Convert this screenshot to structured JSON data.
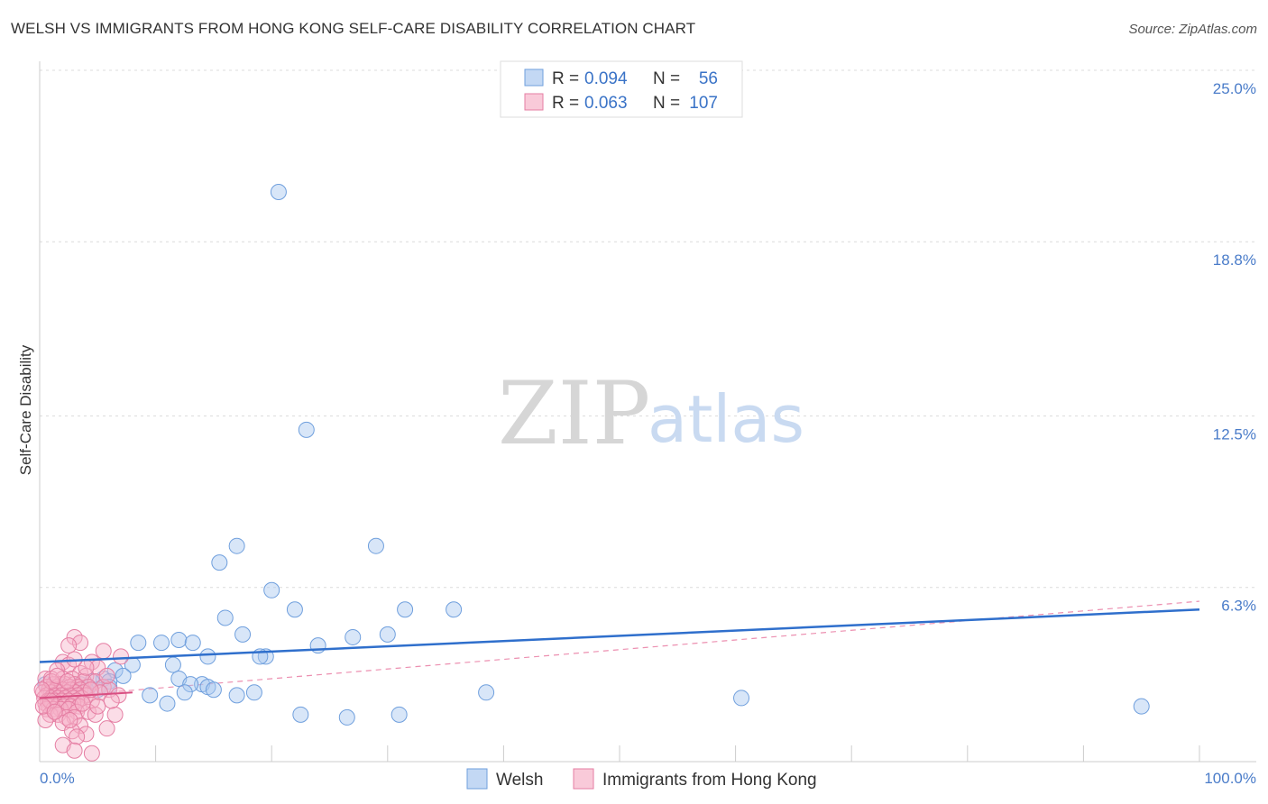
{
  "header": {
    "title": "WELSH VS IMMIGRANTS FROM HONG KONG SELF-CARE DISABILITY CORRELATION CHART",
    "source": "Source: ZipAtlas.com"
  },
  "watermark": {
    "zip": "ZIP",
    "atlas": "atlas"
  },
  "chart_data": {
    "type": "scatter",
    "ylabel": "Self-Care Disability",
    "xlim": [
      0,
      100
    ],
    "ylim": [
      0,
      25.0
    ],
    "y_ticks": [
      {
        "value": 6.3,
        "label": "6.3%"
      },
      {
        "value": 12.5,
        "label": "12.5%"
      },
      {
        "value": 18.8,
        "label": "18.8%"
      },
      {
        "value": 25.0,
        "label": "25.0%"
      }
    ],
    "x_tick_labels": {
      "min": "0.0%",
      "max": "100.0%"
    },
    "grid": "dashed horizontal",
    "legend_position": "top-center",
    "legend": {
      "rows": [
        {
          "r_label": "R = ",
          "r_value": "0.094",
          "n_label": "N = ",
          "n_value": "56",
          "color": "#a9c8ef"
        },
        {
          "r_label": "R = ",
          "r_value": "0.063",
          "n_label": "N = ",
          "n_value": "107",
          "color": "#f6b3c9"
        }
      ]
    },
    "series": [
      {
        "name": "Welsh",
        "color": "#a9c8ef",
        "stroke": "#6f9fdd",
        "trend": {
          "x0": 0,
          "y0": 3.6,
          "x1": 100,
          "y1": 5.5,
          "color": "#2f6fcc",
          "style": "solid"
        },
        "points": [
          [
            20.6,
            20.6
          ],
          [
            23.0,
            12.0
          ],
          [
            17.0,
            7.8
          ],
          [
            29.0,
            7.8
          ],
          [
            15.5,
            7.2
          ],
          [
            20.0,
            6.2
          ],
          [
            22.0,
            5.5
          ],
          [
            31.5,
            5.5
          ],
          [
            35.7,
            5.5
          ],
          [
            16.0,
            5.2
          ],
          [
            17.5,
            4.6
          ],
          [
            30.0,
            4.6
          ],
          [
            27.0,
            4.5
          ],
          [
            12.0,
            4.4
          ],
          [
            13.2,
            4.3
          ],
          [
            8.5,
            4.3
          ],
          [
            10.5,
            4.3
          ],
          [
            24.0,
            4.2
          ],
          [
            14.5,
            3.8
          ],
          [
            19.5,
            3.8
          ],
          [
            19.0,
            3.8
          ],
          [
            8.0,
            3.5
          ],
          [
            11.5,
            3.5
          ],
          [
            6.5,
            3.3
          ],
          [
            7.2,
            3.1
          ],
          [
            5.5,
            3.0
          ],
          [
            12.0,
            3.0
          ],
          [
            4.5,
            2.9
          ],
          [
            6.0,
            2.9
          ],
          [
            3.5,
            2.8
          ],
          [
            4.2,
            2.7
          ],
          [
            6.0,
            2.7
          ],
          [
            14.0,
            2.8
          ],
          [
            13.0,
            2.8
          ],
          [
            14.5,
            2.7
          ],
          [
            15.0,
            2.6
          ],
          [
            5.0,
            2.6
          ],
          [
            3.0,
            2.6
          ],
          [
            2.0,
            2.7
          ],
          [
            4.0,
            2.6
          ],
          [
            1.5,
            2.5
          ],
          [
            2.5,
            2.5
          ],
          [
            3.2,
            2.5
          ],
          [
            12.5,
            2.5
          ],
          [
            18.5,
            2.5
          ],
          [
            17.0,
            2.4
          ],
          [
            9.5,
            2.4
          ],
          [
            38.5,
            2.5
          ],
          [
            60.5,
            2.3
          ],
          [
            11.0,
            2.1
          ],
          [
            95.0,
            2.0
          ],
          [
            22.5,
            1.7
          ],
          [
            26.5,
            1.6
          ],
          [
            31.0,
            1.7
          ],
          [
            0.5,
            2.8
          ],
          [
            1.0,
            2.4
          ]
        ]
      },
      {
        "name": "Immigrants from Hong Kong",
        "color": "#f6b3c9",
        "stroke": "#e57ea3",
        "trend": {
          "x0": 0,
          "y0": 2.3,
          "x1": 8,
          "y1": 2.5,
          "color": "#d94f82",
          "style": "solid"
        },
        "trend_ext": {
          "x0": 0,
          "y0": 2.3,
          "x1": 100,
          "y1": 5.8,
          "color": "#ec8fb0",
          "style": "dashed"
        },
        "points": [
          [
            3.0,
            4.5
          ],
          [
            3.5,
            4.3
          ],
          [
            2.5,
            4.2
          ],
          [
            5.5,
            4.0
          ],
          [
            7.0,
            3.8
          ],
          [
            2.0,
            3.6
          ],
          [
            4.5,
            3.6
          ],
          [
            2.5,
            3.5
          ],
          [
            5.0,
            3.4
          ],
          [
            1.5,
            3.3
          ],
          [
            3.5,
            3.2
          ],
          [
            4.0,
            3.1
          ],
          [
            0.5,
            3.0
          ],
          [
            1.0,
            3.0
          ],
          [
            2.0,
            3.0
          ],
          [
            2.8,
            3.0
          ],
          [
            3.8,
            2.9
          ],
          [
            4.8,
            2.9
          ],
          [
            1.2,
            2.8
          ],
          [
            1.8,
            2.8
          ],
          [
            2.2,
            2.8
          ],
          [
            3.0,
            2.8
          ],
          [
            0.6,
            2.7
          ],
          [
            1.5,
            2.7
          ],
          [
            2.6,
            2.7
          ],
          [
            3.3,
            2.7
          ],
          [
            4.2,
            2.7
          ],
          [
            5.5,
            2.7
          ],
          [
            0.8,
            2.6
          ],
          [
            1.4,
            2.6
          ],
          [
            2.0,
            2.6
          ],
          [
            2.7,
            2.6
          ],
          [
            3.5,
            2.6
          ],
          [
            0.3,
            2.5
          ],
          [
            1.0,
            2.5
          ],
          [
            1.7,
            2.5
          ],
          [
            2.4,
            2.5
          ],
          [
            3.1,
            2.5
          ],
          [
            3.8,
            2.5
          ],
          [
            0.6,
            2.4
          ],
          [
            1.2,
            2.4
          ],
          [
            1.9,
            2.4
          ],
          [
            2.6,
            2.4
          ],
          [
            3.3,
            2.4
          ],
          [
            4.0,
            2.4
          ],
          [
            0.4,
            2.3
          ],
          [
            1.0,
            2.3
          ],
          [
            1.6,
            2.3
          ],
          [
            2.2,
            2.3
          ],
          [
            2.9,
            2.3
          ],
          [
            3.6,
            2.3
          ],
          [
            0.7,
            2.2
          ],
          [
            1.3,
            2.2
          ],
          [
            1.9,
            2.2
          ],
          [
            2.5,
            2.2
          ],
          [
            3.2,
            2.2
          ],
          [
            0.5,
            2.1
          ],
          [
            1.1,
            2.1
          ],
          [
            1.7,
            2.1
          ],
          [
            2.3,
            2.1
          ],
          [
            2.9,
            2.1
          ],
          [
            0.8,
            2.0
          ],
          [
            1.5,
            2.0
          ],
          [
            2.1,
            2.0
          ],
          [
            2.7,
            2.0
          ],
          [
            3.4,
            2.0
          ],
          [
            4.5,
            2.2
          ],
          [
            0.6,
            1.9
          ],
          [
            1.2,
            1.9
          ],
          [
            1.8,
            1.9
          ],
          [
            2.5,
            1.9
          ],
          [
            3.2,
            1.8
          ],
          [
            4.2,
            1.8
          ],
          [
            0.9,
            1.7
          ],
          [
            1.6,
            1.7
          ],
          [
            2.3,
            1.6
          ],
          [
            3.0,
            1.6
          ],
          [
            4.8,
            1.7
          ],
          [
            6.5,
            1.7
          ],
          [
            0.5,
            1.5
          ],
          [
            2.0,
            1.4
          ],
          [
            3.5,
            1.3
          ],
          [
            5.8,
            1.2
          ],
          [
            2.8,
            1.1
          ],
          [
            4.0,
            1.0
          ],
          [
            3.2,
            0.9
          ],
          [
            2.0,
            0.6
          ],
          [
            3.0,
            0.4
          ],
          [
            4.5,
            0.3
          ],
          [
            1.0,
            2.9
          ],
          [
            6.0,
            2.6
          ],
          [
            6.8,
            2.4
          ],
          [
            5.2,
            2.5
          ],
          [
            4.4,
            2.6
          ],
          [
            5.8,
            3.1
          ],
          [
            4.0,
            3.4
          ],
          [
            3.0,
            3.7
          ],
          [
            1.5,
            3.1
          ],
          [
            0.9,
            2.2
          ],
          [
            2.4,
            2.9
          ],
          [
            3.7,
            2.1
          ],
          [
            0.2,
            2.6
          ],
          [
            0.3,
            2.0
          ],
          [
            1.3,
            1.8
          ],
          [
            2.6,
            1.5
          ],
          [
            5.0,
            2.0
          ],
          [
            6.2,
            2.2
          ]
        ]
      }
    ]
  }
}
